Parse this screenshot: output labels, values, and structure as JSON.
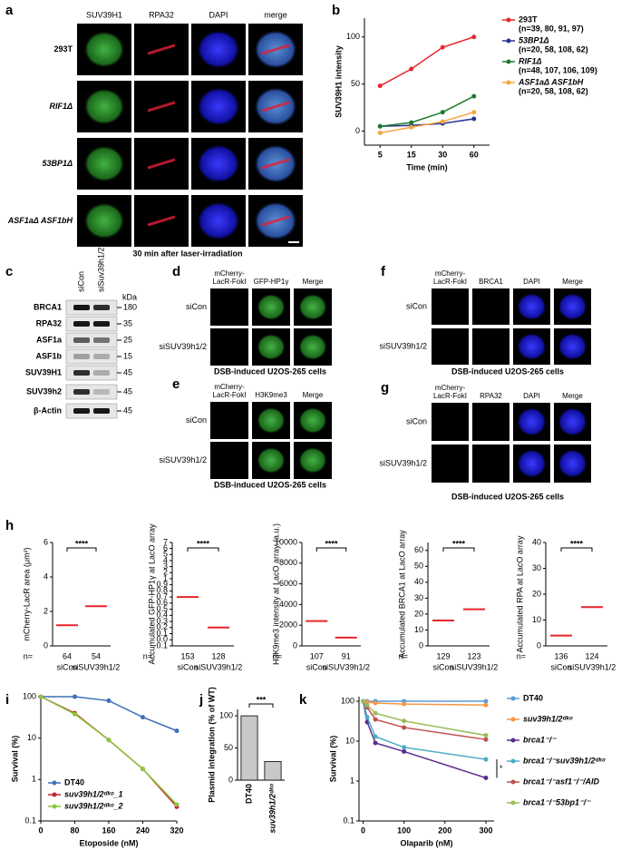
{
  "panel_labels": [
    "a",
    "b",
    "c",
    "d",
    "e",
    "f",
    "g",
    "h",
    "i",
    "j",
    "k"
  ],
  "a": {
    "columns": [
      "SUV39H1",
      "RPA32",
      "DAPI",
      "merge"
    ],
    "rows": [
      "293T",
      "RIF1Δ",
      "53BP1Δ",
      "ASF1aΔ ASF1bH"
    ],
    "caption": "30 min after laser-irradiation"
  },
  "c": {
    "lanes": [
      "siCon",
      "siSuv39h1/2"
    ],
    "unit": "kDa",
    "bands": [
      {
        "name": "BRCA1",
        "kda": 180
      },
      {
        "name": "RPA32",
        "kda": 35
      },
      {
        "name": "ASF1a",
        "kda": 25
      },
      {
        "name": "ASF1b",
        "kda": 15
      },
      {
        "name": "SUV39H1",
        "kda": 45
      },
      {
        "name": "SUV39h2",
        "kda": 45
      },
      {
        "name": "β-Actin",
        "kda": 45
      }
    ]
  },
  "d": {
    "columns": [
      "mCherry-LacR-FokI",
      "GFP-HP1γ",
      "Merge"
    ],
    "rows": [
      "siCon",
      "siSUV39h1/2"
    ],
    "caption": "DSB-induced U2OS-265 cells"
  },
  "e": {
    "columns": [
      "mCherry-LacR-FokI",
      "H3K9me3",
      "Merge"
    ],
    "rows": [
      "siCon",
      "siSUV39h1/2"
    ],
    "caption": "DSB-induced U2OS-265 cells"
  },
  "f": {
    "columns": [
      "mCherry-LacR-FokI",
      "BRCA1",
      "DAPI",
      "Merge"
    ],
    "rows": [
      "siCon",
      "siSUV39h1/2"
    ],
    "caption": "DSB-induced U2OS-265 cells"
  },
  "g": {
    "columns": [
      "mCherry-LacR-FokI",
      "RPA32",
      "DAPI",
      "Merge"
    ],
    "rows": [
      "siCon",
      "siSUV39h1/2"
    ],
    "caption": "DSB-induced U2OS-265 cells"
  },
  "chart_data": [
    {
      "type": "line",
      "y_label": "SUV39H1 intensity",
      "x_label": "Time (min)",
      "categories": [
        5,
        15,
        30,
        60
      ],
      "ylim": [
        -15,
        120
      ],
      "yticks": [
        0,
        50,
        100
      ],
      "legend": "right",
      "series": [
        {
          "name": "293T",
          "n_label": "(n=39, 80, 91, 97)",
          "color": "#e8262a",
          "values": [
            48,
            66,
            89,
            100
          ]
        },
        {
          "name": "53BP1Δ",
          "n_label": "(n=20, 58, 108, 62)",
          "color": "#27358f",
          "values": [
            5,
            6,
            8,
            13
          ]
        },
        {
          "name": "RIF1Δ",
          "n_label": "(n=48, 107, 106, 109)",
          "color": "#1f7a2e",
          "values": [
            5,
            9,
            20,
            37
          ]
        },
        {
          "name": "ASF1aΔ ASF1bH",
          "n_label": "(n=20, 58, 108, 62)",
          "color": "#f7a541",
          "values": [
            -2,
            4,
            10,
            20
          ]
        }
      ]
    },
    {
      "type": "dot",
      "y_label": "mCherry-LacR area (μm²)",
      "categories": [
        "siCon",
        "siSUV39h1/2"
      ],
      "values": [
        1.2,
        2.3
      ],
      "n_label": "n=",
      "n": [
        64,
        54
      ],
      "significance": "****",
      "ylim": [
        0,
        6
      ],
      "yticks": [
        0,
        2,
        4,
        6
      ],
      "color": "#e8262a"
    },
    {
      "type": "dot",
      "y_label": "Accumulated GFP-HP1γ at LacO array",
      "categories": [
        "siCon",
        "siSUV39h1/2"
      ],
      "values": [
        0.7,
        0.2
      ],
      "n_label": "n=",
      "n": [
        153,
        128
      ],
      "significance": "****",
      "ylim": [
        -0.1,
        7
      ],
      "axis_break": 1,
      "yticks": [
        -0.1,
        {
          "value": 0,
          "label": "0.0"
        },
        0.1,
        0.2,
        0.3,
        0.4,
        0.5,
        0.6,
        0.7,
        0.8,
        0.9,
        1,
        2,
        3,
        4,
        5,
        6,
        7
      ],
      "color": "#e8262a"
    },
    {
      "type": "dot",
      "y_label": "H3K9me3 intensity at LacO array (a.u.)",
      "categories": [
        "siCon",
        "siSUV39h1/2"
      ],
      "values": [
        2400,
        800
      ],
      "n_label": "n=",
      "n": [
        107,
        91
      ],
      "significance": "****",
      "ylim": [
        0,
        10000
      ],
      "yticks": [
        0,
        2000,
        4000,
        6000,
        8000,
        10000
      ],
      "color": "#e8262a"
    },
    {
      "type": "dot",
      "y_label": "Accumulated BRCA1 at LacO array",
      "categories": [
        "siCon",
        "siSUV39h1/2"
      ],
      "values": [
        16,
        23
      ],
      "n_label": "n=",
      "n": [
        129,
        123
      ],
      "significance": "****",
      "ylim": [
        0,
        65
      ],
      "yticks": [
        0,
        10,
        20,
        30,
        40,
        50,
        60
      ],
      "color": "#e8262a"
    },
    {
      "type": "dot",
      "y_label": "Accumulated RPA at LacO array",
      "categories": [
        "siCon",
        "siSUV39h1/2"
      ],
      "values": [
        4,
        15
      ],
      "n_label": "n=",
      "n": [
        136,
        124
      ],
      "significance": "****",
      "ylim": [
        0,
        40
      ],
      "yticks": [
        0,
        10,
        20,
        30,
        40
      ],
      "color": "#e8262a"
    },
    {
      "type": "line",
      "y_label": "Survival (%)",
      "x_label": "Etoposide (nM)",
      "log_y": true,
      "legend": "lower-left",
      "x": [
        0,
        80,
        160,
        240,
        320
      ],
      "xlim": [
        0,
        320
      ],
      "xticks": [
        0,
        80,
        160,
        240,
        320
      ],
      "ylim": [
        0.1,
        100
      ],
      "yticks": [
        0.1,
        1,
        10,
        100
      ],
      "series": [
        {
          "name": "DT40",
          "color": "#3d6fb6",
          "values": [
            100,
            100,
            80,
            32,
            15
          ]
        },
        {
          "name": "suv39h1/2ᵈᵏᵒ_1",
          "color": "#c0272d",
          "values": [
            100,
            40,
            9,
            1.8,
            0.22
          ]
        },
        {
          "name": "suv39h1/2ᵈᵏᵒ_2",
          "color": "#8dc63f",
          "values": [
            100,
            38,
            9,
            1.8,
            0.25
          ]
        }
      ]
    },
    {
      "type": "bar",
      "y_label": "Plasmid integration (% of WT)",
      "categories": [
        "DT40",
        "suv39h1/2ᵈᵏᵒ"
      ],
      "values": [
        100,
        29
      ],
      "significance": "***",
      "ylim": [
        0,
        110
      ],
      "yticks": [
        0,
        50,
        100
      ],
      "color": "#c8c8c8"
    },
    {
      "type": "line",
      "y_label": "Survival (%)",
      "x_label": "Olaparib (nM)",
      "log_y": true,
      "legend": "right",
      "significance": "*",
      "x": [
        0,
        10,
        30,
        100,
        300
      ],
      "xlim": [
        -10,
        320
      ],
      "xticks": [
        0,
        100,
        200,
        300
      ],
      "ylim": [
        0.1,
        130
      ],
      "yticks": [
        0.1,
        1,
        10,
        100
      ],
      "series": [
        {
          "name": "DT40",
          "color": "#5b9bd5",
          "values": [
            100,
            100,
            100,
            100,
            100
          ]
        },
        {
          "name": "suv39h1/2ᵈᵏᵒ",
          "color": "#f79646",
          "values": [
            100,
            95,
            90,
            85,
            80
          ]
        },
        {
          "name": "brca1⁻/⁻",
          "color": "#5b2c8f",
          "values": [
            100,
            30,
            9,
            5.5,
            1.2
          ]
        },
        {
          "name": "brca1⁻/⁻suv39h1/2ᵈᵏᵒ",
          "color": "#4bacc6",
          "values": [
            100,
            40,
            13,
            7,
            3.5
          ]
        },
        {
          "name": "brca1⁻/⁻asf1⁻/⁻/AID",
          "color": "#c0504d",
          "values": [
            100,
            70,
            35,
            22,
            11
          ]
        },
        {
          "name": "brca1⁻/⁻53bp1⁻/⁻",
          "color": "#9bbb59",
          "values": [
            100,
            80,
            50,
            32,
            14
          ]
        }
      ]
    }
  ]
}
